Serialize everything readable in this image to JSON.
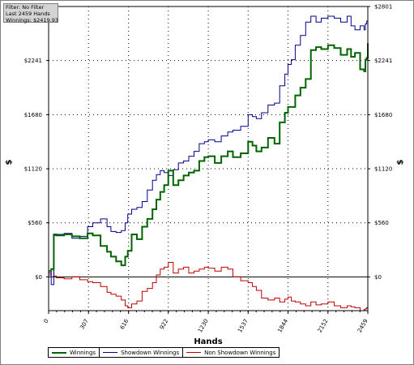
{
  "info": {
    "filter": "Filter: No Filter",
    "last": "Last  2459 Hands",
    "winnings": "Winnings: $2419.93"
  },
  "legend": [
    {
      "label": "Winnings",
      "color": "#006400"
    },
    {
      "label": "Showdown Winnings",
      "color": "#00008b"
    },
    {
      "label": "Non Showdown Winnings",
      "color": "#c00000"
    }
  ],
  "chart_data": {
    "type": "line",
    "xlabel": "Hands",
    "ylabel": "$",
    "xlim": [
      0,
      2459
    ],
    "ylim": [
      -350,
      2801
    ],
    "x_ticks": [
      "0",
      "307",
      "616",
      "922",
      "1230",
      "1537",
      "1844",
      "2152",
      "2459"
    ],
    "y_ticks": [
      "$0",
      "$560",
      "$1120",
      "$1680",
      "$2241",
      "$2801"
    ],
    "grid": true,
    "series": [
      {
        "name": "Winnings",
        "color": "#006400",
        "x": [
          0,
          20,
          40,
          60,
          120,
          180,
          240,
          300,
          340,
          400,
          450,
          480,
          520,
          560,
          590,
          610,
          640,
          680,
          720,
          760,
          800,
          830,
          860,
          890,
          922,
          960,
          1000,
          1040,
          1080,
          1120,
          1160,
          1200,
          1230,
          1280,
          1330,
          1380,
          1420,
          1480,
          1537,
          1570,
          1600,
          1640,
          1690,
          1740,
          1780,
          1820,
          1844,
          1870,
          1900,
          1940,
          1980,
          2020,
          2060,
          2100,
          2152,
          2200,
          2250,
          2300,
          2330,
          2360,
          2400,
          2430,
          2440,
          2450,
          2459
        ],
        "values": [
          60,
          80,
          440,
          430,
          440,
          420,
          400,
          450,
          430,
          320,
          260,
          210,
          160,
          120,
          210,
          270,
          440,
          390,
          520,
          600,
          700,
          800,
          880,
          950,
          1100,
          950,
          1000,
          1050,
          1080,
          1100,
          1200,
          1240,
          1250,
          1180,
          1250,
          1300,
          1240,
          1280,
          1400,
          1360,
          1300,
          1340,
          1440,
          1380,
          1600,
          1700,
          1760,
          1760,
          1880,
          1960,
          2050,
          2350,
          2380,
          2360,
          2400,
          2370,
          2300,
          2360,
          2280,
          2320,
          2150,
          2130,
          2250,
          2270,
          2420
        ]
      },
      {
        "name": "Showdown Winnings",
        "color": "#00008b",
        "x": [
          0,
          20,
          40,
          60,
          120,
          180,
          240,
          300,
          340,
          400,
          450,
          480,
          520,
          560,
          590,
          610,
          640,
          680,
          720,
          760,
          800,
          830,
          860,
          890,
          922,
          960,
          1000,
          1040,
          1080,
          1120,
          1160,
          1200,
          1230,
          1280,
          1330,
          1380,
          1420,
          1480,
          1537,
          1570,
          1600,
          1640,
          1690,
          1740,
          1780,
          1820,
          1844,
          1870,
          1900,
          1940,
          1980,
          2020,
          2060,
          2100,
          2152,
          2200,
          2250,
          2300,
          2330,
          2360,
          2400,
          2430,
          2440,
          2450,
          2459
        ],
        "values": [
          40,
          -80,
          430,
          440,
          450,
          400,
          420,
          520,
          560,
          600,
          520,
          470,
          460,
          480,
          560,
          650,
          700,
          720,
          780,
          900,
          1000,
          1060,
          1100,
          1080,
          1050,
          1110,
          1180,
          1200,
          1250,
          1300,
          1380,
          1400,
          1420,
          1400,
          1460,
          1500,
          1520,
          1560,
          1680,
          1660,
          1640,
          1700,
          1780,
          1800,
          1980,
          2100,
          2200,
          2250,
          2400,
          2500,
          2640,
          2700,
          2640,
          2680,
          2700,
          2680,
          2640,
          2700,
          2600,
          2560,
          2600,
          2560,
          2620,
          2650,
          2801
        ]
      },
      {
        "name": "Non Showdown Winnings",
        "color": "#c00000",
        "x": [
          0,
          20,
          40,
          60,
          120,
          180,
          240,
          300,
          340,
          400,
          450,
          480,
          520,
          560,
          590,
          610,
          640,
          680,
          720,
          760,
          800,
          830,
          860,
          890,
          922,
          960,
          1000,
          1040,
          1080,
          1120,
          1160,
          1200,
          1230,
          1280,
          1330,
          1380,
          1420,
          1480,
          1537,
          1570,
          1600,
          1640,
          1690,
          1740,
          1780,
          1820,
          1844,
          1870,
          1900,
          1940,
          1980,
          2020,
          2060,
          2100,
          2152,
          2200,
          2250,
          2300,
          2330,
          2360,
          2400,
          2430,
          2440,
          2450,
          2459
        ],
        "values": [
          20,
          80,
          10,
          -10,
          -20,
          0,
          -30,
          -50,
          -60,
          -100,
          -160,
          -180,
          -200,
          -240,
          -300,
          -320,
          -280,
          -250,
          -150,
          -120,
          -60,
          20,
          80,
          100,
          150,
          40,
          80,
          100,
          40,
          60,
          80,
          100,
          90,
          60,
          100,
          80,
          0,
          -40,
          -60,
          -100,
          -140,
          -220,
          -240,
          -220,
          -260,
          -230,
          -210,
          -250,
          -260,
          -280,
          -300,
          -260,
          -290,
          -280,
          -260,
          -300,
          -320,
          -300,
          -310,
          -320,
          -350,
          -340,
          -330,
          -320,
          -320
        ]
      }
    ]
  }
}
